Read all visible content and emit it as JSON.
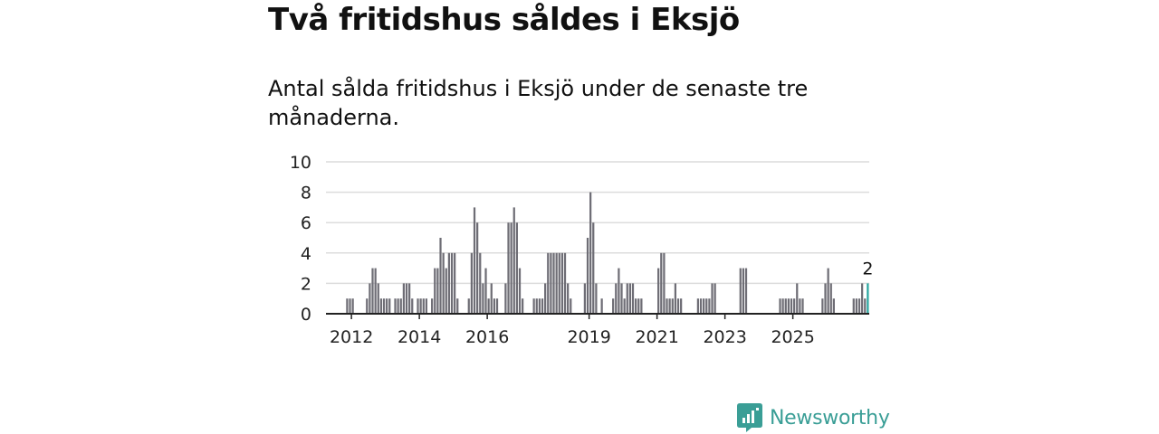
{
  "header": {
    "title": "Två fritidshus såldes i Eksjö",
    "subtitle": "Antal sålda fritidshus i Eksjö under de senaste tre månaderna."
  },
  "brand": {
    "name": "Newsworthy",
    "color": "#3a9e96",
    "icon": "bar-chart-speech-bubble-icon"
  },
  "chart_data": {
    "type": "bar",
    "title": "",
    "xlabel": "",
    "ylabel": "",
    "ylim": [
      0,
      10
    ],
    "yticks": [
      0,
      2,
      4,
      6,
      8,
      10
    ],
    "xticks": [
      "2012",
      "2014",
      "2016",
      "2019",
      "2021",
      "2023",
      "2025"
    ],
    "grid": true,
    "bar_color": "#6e6d75",
    "highlight_color": "#27a6a0",
    "highlight_label": "2",
    "series": [
      {
        "values": [
          0,
          0,
          0,
          0,
          0,
          0,
          0,
          1,
          1,
          1,
          0,
          0,
          0,
          0,
          1,
          2,
          3,
          3,
          2,
          1,
          1,
          1,
          1,
          0,
          1,
          1,
          1,
          2,
          2,
          2,
          1,
          0,
          1,
          1,
          1,
          1,
          0,
          1,
          3,
          3,
          5,
          4,
          3,
          4,
          4,
          4,
          1,
          0,
          0,
          0,
          1,
          4,
          7,
          6,
          4,
          2,
          3,
          1,
          2,
          1,
          1,
          0,
          0,
          2,
          6,
          6,
          7,
          6,
          3,
          1,
          0,
          0,
          0,
          1,
          1,
          1,
          1,
          2,
          4,
          4,
          4,
          4,
          4,
          4,
          4,
          2,
          1,
          0,
          0,
          0,
          0,
          2,
          5,
          8,
          6,
          2,
          0,
          1,
          0,
          0,
          0,
          1,
          2,
          3,
          2,
          1,
          2,
          2,
          2,
          1,
          1,
          1,
          0,
          0,
          0,
          0,
          0,
          3,
          4,
          4,
          1,
          1,
          1,
          2,
          1,
          1,
          0,
          0,
          0,
          0,
          0,
          1,
          1,
          1,
          1,
          1,
          2,
          2,
          0,
          0,
          0,
          0,
          0,
          0,
          0,
          0,
          3,
          3,
          3,
          0,
          0,
          0,
          0,
          0,
          0,
          0,
          0,
          0,
          0,
          0,
          1,
          1,
          1,
          1,
          1,
          1,
          2,
          1,
          1,
          0,
          0,
          0,
          0,
          0,
          0,
          1,
          2,
          3,
          2,
          1,
          0,
          0,
          0,
          0,
          0,
          0,
          1,
          1,
          1,
          2,
          1,
          2
        ]
      }
    ]
  }
}
